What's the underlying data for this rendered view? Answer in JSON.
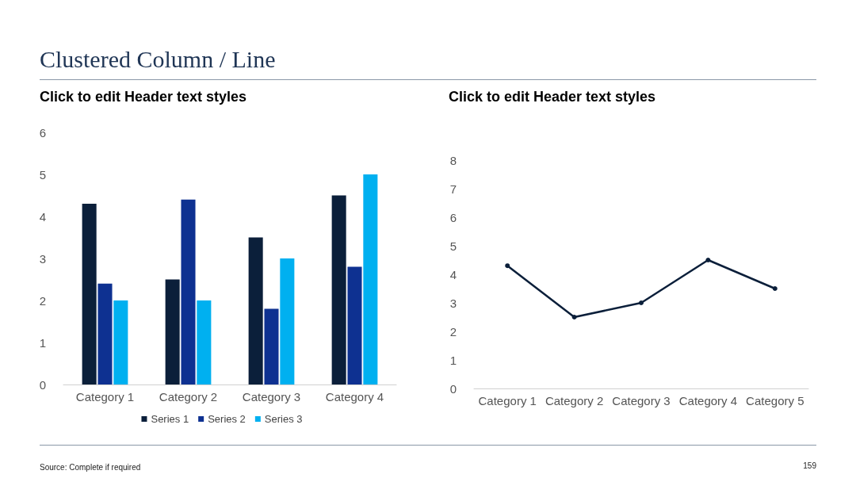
{
  "chart_data": [
    {
      "type": "bar",
      "title": "Clustered Column / Line",
      "subtitle": "Click to edit Header text styles",
      "categories": [
        "Category 1",
        "Category 2",
        "Category 3",
        "Category 4"
      ],
      "series": [
        {
          "name": "Series 1",
          "color": "#0b1f3a",
          "values": [
            4.3,
            2.5,
            3.5,
            4.5
          ]
        },
        {
          "name": "Series 2",
          "color": "#0e3191",
          "values": [
            2.4,
            4.4,
            1.8,
            2.8
          ]
        },
        {
          "name": "Series 3",
          "color": "#00b0f0",
          "values": [
            2,
            2,
            3,
            5
          ]
        }
      ],
      "ylim": [
        0,
        6
      ],
      "yticks": [
        0,
        1,
        2,
        3,
        4,
        5,
        6
      ],
      "grid": false,
      "legend": "bottom",
      "annotations": [
        "Source: Complete if required",
        "159"
      ]
    },
    {
      "type": "line",
      "subtitle": "Click to edit Header text styles",
      "categories": [
        "Category 1",
        "Category 2",
        "Category 3",
        "Category 4",
        "Category 5"
      ],
      "series": [
        {
          "color": "#0b1f3a",
          "values": [
            4.3,
            2.5,
            3,
            4.5,
            3.5
          ]
        }
      ],
      "ylim": [
        0,
        8
      ],
      "yticks": [
        0,
        1,
        2,
        3,
        4,
        5,
        6,
        7,
        8
      ],
      "grid": false,
      "legend": false,
      "marker": "circle"
    }
  ]
}
